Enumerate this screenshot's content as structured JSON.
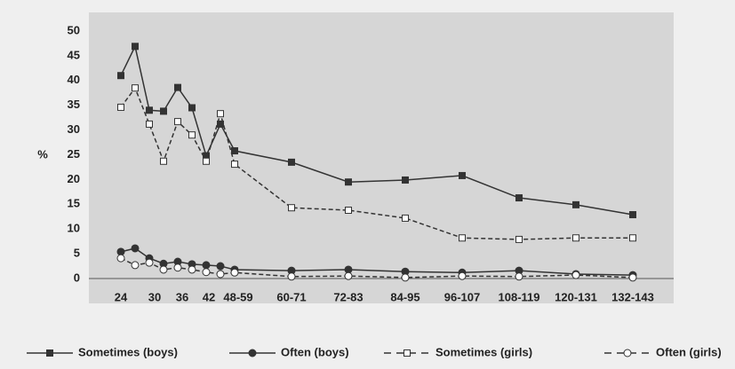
{
  "chart_data": {
    "type": "line",
    "ylabel": "%",
    "categories": [
      "24",
      null,
      "30",
      null,
      "36",
      null,
      "42",
      null,
      "48-59",
      "60-71",
      "72-83",
      "84-95",
      "96-107",
      "108-119",
      "120-131",
      "132-143"
    ],
    "ylim": [
      0,
      50
    ],
    "yticks": [
      0,
      5,
      10,
      15,
      20,
      25,
      30,
      35,
      40,
      45,
      50
    ],
    "grid": false,
    "legend": "bottom",
    "series": [
      {
        "name": "Sometimes (boys)",
        "color": "#333333",
        "marker": "square",
        "filled": true,
        "dashed": false,
        "values": [
          41,
          46.9,
          34,
          33.8,
          38.6,
          34.5,
          24.8,
          31.2,
          25.8,
          23.5,
          19.5,
          19.9,
          20.8,
          16.3,
          14.9,
          12.9
        ]
      },
      {
        "name": "Often (boys)",
        "color": "#333333",
        "marker": "circle",
        "filled": true,
        "dashed": false,
        "values": [
          5.4,
          6.1,
          4.1,
          3.0,
          3.4,
          2.9,
          2.7,
          2.5,
          1.8,
          1.6,
          1.8,
          1.4,
          1.2,
          1.6,
          0.9,
          0.7
        ]
      },
      {
        "name": "Sometimes (girls)",
        "color": "#333333",
        "marker": "square",
        "filled": false,
        "dashed": true,
        "values": [
          34.6,
          38.5,
          31.2,
          23.7,
          31.7,
          29,
          23.7,
          33.3,
          23.1,
          14.3,
          13.8,
          12.2,
          8.2,
          7.9,
          8.2,
          8.2
        ]
      },
      {
        "name": "Often (girls)",
        "color": "#333333",
        "marker": "circle",
        "filled": false,
        "dashed": true,
        "values": [
          4.1,
          2.7,
          3.2,
          1.8,
          2.2,
          1.8,
          1.3,
          0.9,
          1.2,
          0.4,
          0.5,
          0.2,
          0.5,
          0.4,
          0.7,
          0.2
        ]
      }
    ]
  }
}
